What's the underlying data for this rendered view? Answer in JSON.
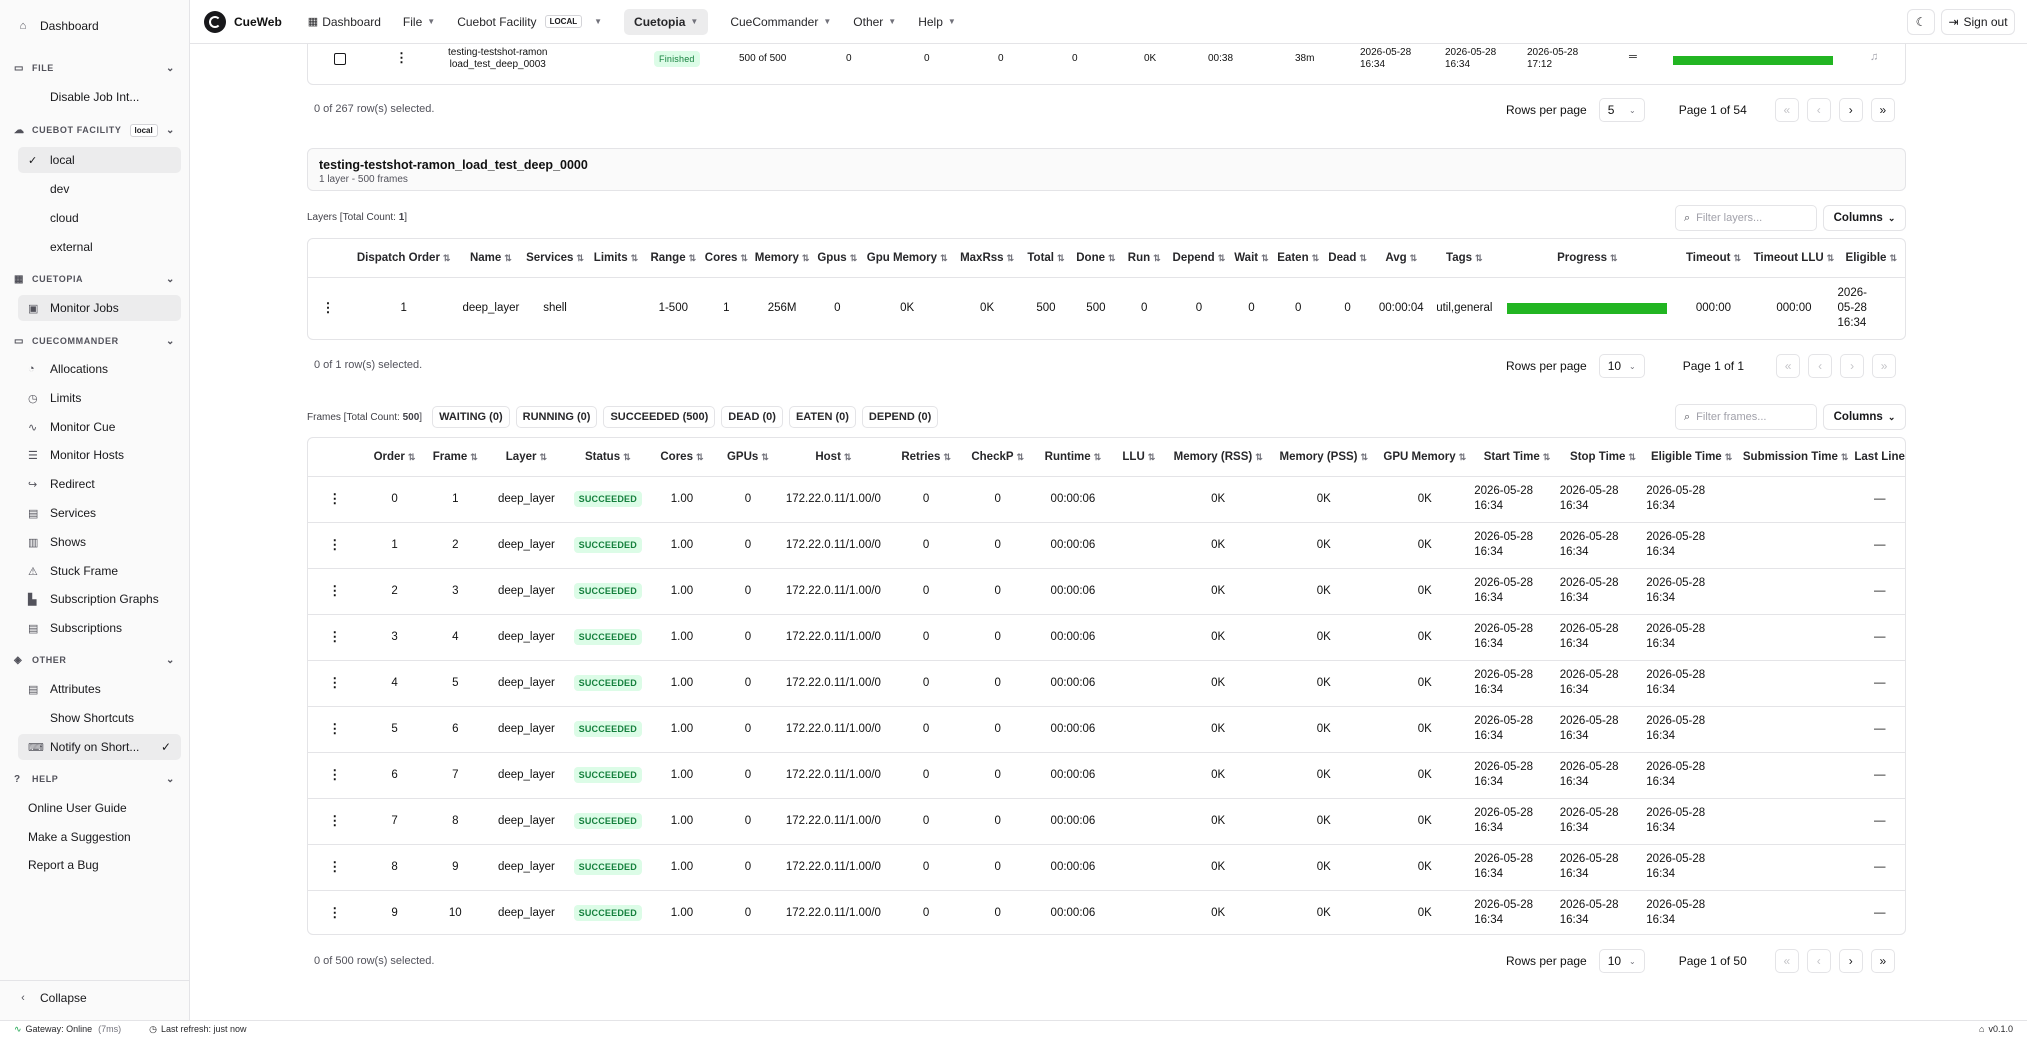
{
  "app": {
    "name": "CueWeb",
    "version": "v0.1.0"
  },
  "colors": {
    "accent_green": "#22b522",
    "status_bg": "#dcfce7",
    "status_fg": "#15803d"
  },
  "sidebar": {
    "dashboard": "Dashboard",
    "file_header": "FILE",
    "file_items": [
      "Disable Job Int..."
    ],
    "facility_header": "CUEBOT FACILITY",
    "facility_badge": "local",
    "facility_items": [
      "local",
      "dev",
      "cloud",
      "external"
    ],
    "cuetopia_header": "CUETOPIA",
    "cuetopia_items": [
      "Monitor Jobs"
    ],
    "cuecommander_header": "CUECOMMANDER",
    "cuecommander_items": [
      "Allocations",
      "Limits",
      "Monitor Cue",
      "Monitor Hosts",
      "Redirect",
      "Services",
      "Shows",
      "Stuck Frame",
      "Subscription Graphs",
      "Subscriptions"
    ],
    "other_header": "OTHER",
    "other_items": [
      "Attributes",
      "Show Shortcuts",
      "Notify on Short..."
    ],
    "help_header": "HELP",
    "help_items": [
      "Online User Guide",
      "Make a Suggestion",
      "Report a Bug"
    ],
    "collapse": "Collapse"
  },
  "topbar": {
    "brand": "CueWeb",
    "dashboard": "Dashboard",
    "file": "File",
    "facility": "Cuebot Facility",
    "facility_badge": "LOCAL",
    "cuetopia": "Cuetopia",
    "cuecommander": "CueCommander",
    "other": "Other",
    "help": "Help",
    "sign_out": "Sign out"
  },
  "jobs_table": {
    "row": {
      "name_line1": "testing-testshot-ramon",
      "name_line2": "load_test_deep_0003",
      "state": "Finished",
      "done_total": "500 of 500",
      "running": "0",
      "dead": "0",
      "eaten": "0",
      "wait": "0",
      "max_rss": "0K",
      "avg": "00:38",
      "age": "38m",
      "launched": [
        "2026-05-28",
        "16:34"
      ],
      "started": [
        "2026-05-28",
        "16:34"
      ],
      "finished": [
        "2026-05-28",
        "17:12"
      ],
      "progress": 1.0
    },
    "selected": "0 of 267 row(s) selected.",
    "rows_per_page_label": "Rows per page",
    "rows_per_page": "5",
    "page": "Page 1 of 54"
  },
  "job_detail": {
    "title": "testing-testshot-ramon_load_test_deep_0000",
    "subtitle": "1 layer - 500 frames"
  },
  "layers": {
    "count_label": "Layers [Total Count: ",
    "count": "1",
    "count_close": "]",
    "filter_placeholder": "Filter layers...",
    "columns_btn": "Columns",
    "headers": [
      "Dispatch Order",
      "Name",
      "Services",
      "Limits",
      "Range",
      "Cores",
      "Memory",
      "Gpus",
      "Gpu Memory",
      "MaxRss",
      "Total",
      "Done",
      "Run",
      "Depend",
      "Wait",
      "Eaten",
      "Dead",
      "Avg",
      "Tags",
      "Progress",
      "Timeout",
      "Timeout LLU",
      "Eligible"
    ],
    "row": {
      "dispatch_order": "1",
      "name": "deep_layer",
      "services": "shell",
      "limits": "",
      "range": "1-500",
      "cores": "1",
      "memory": "256M",
      "gpus": "0",
      "gpu_memory": "0K",
      "max_rss": "0K",
      "total": "500",
      "done": "500",
      "run": "0",
      "depend": "0",
      "wait": "0",
      "eaten": "0",
      "dead": "0",
      "avg": "00:00:04",
      "tags": "util,general",
      "progress": 1.0,
      "timeout": "000:00",
      "timeout_llu": "000:00",
      "eligible": [
        "2026-",
        "05-28",
        "16:34"
      ]
    },
    "selected": "0 of 1 row(s) selected.",
    "rows_per_page_label": "Rows per page",
    "rows_per_page": "10",
    "page": "Page 1 of 1"
  },
  "frames": {
    "count_label": "Frames [Total Count: ",
    "count": "500",
    "count_close": "]",
    "chips": [
      "WAITING (0)",
      "RUNNING (0)",
      "SUCCEEDED (500)",
      "DEAD (0)",
      "EATEN (0)",
      "DEPEND (0)"
    ],
    "filter_placeholder": "Filter frames...",
    "columns_btn": "Columns",
    "headers": [
      "Order",
      "Frame",
      "Layer",
      "Status",
      "Cores",
      "GPUs",
      "Host",
      "Retries",
      "CheckP",
      "Runtime",
      "LLU",
      "Memory (RSS)",
      "Memory (PSS)",
      "GPU Memory",
      "Start Time",
      "Stop Time",
      "Eligible Time",
      "Submission Time",
      "Last Line"
    ],
    "rows": [
      {
        "order": "0",
        "frame": "1"
      },
      {
        "order": "1",
        "frame": "2"
      },
      {
        "order": "2",
        "frame": "3"
      },
      {
        "order": "3",
        "frame": "4"
      },
      {
        "order": "4",
        "frame": "5"
      },
      {
        "order": "5",
        "frame": "6"
      },
      {
        "order": "6",
        "frame": "7"
      },
      {
        "order": "7",
        "frame": "8"
      },
      {
        "order": "8",
        "frame": "9"
      },
      {
        "order": "9",
        "frame": "10"
      }
    ],
    "common": {
      "layer": "deep_layer",
      "status": "SUCCEEDED",
      "cores": "1.00",
      "gpus": "0",
      "host": "172.22.0.11/1.00/0",
      "retries": "0",
      "checkp": "0",
      "runtime": "00:00:06",
      "llu": "",
      "mem_rss": "0K",
      "mem_pss": "0K",
      "gpu_mem": "0K",
      "date": "2026-05-28",
      "time": "16:34",
      "last_line": "—"
    },
    "selected": "0 of 500 row(s) selected.",
    "rows_per_page_label": "Rows per page",
    "rows_per_page": "10",
    "page": "Page 1 of 50"
  },
  "footer": {
    "gateway": "Gateway: Online",
    "latency": "(7ms)",
    "refresh": "Last refresh: just now",
    "version": "v0.1.0"
  }
}
